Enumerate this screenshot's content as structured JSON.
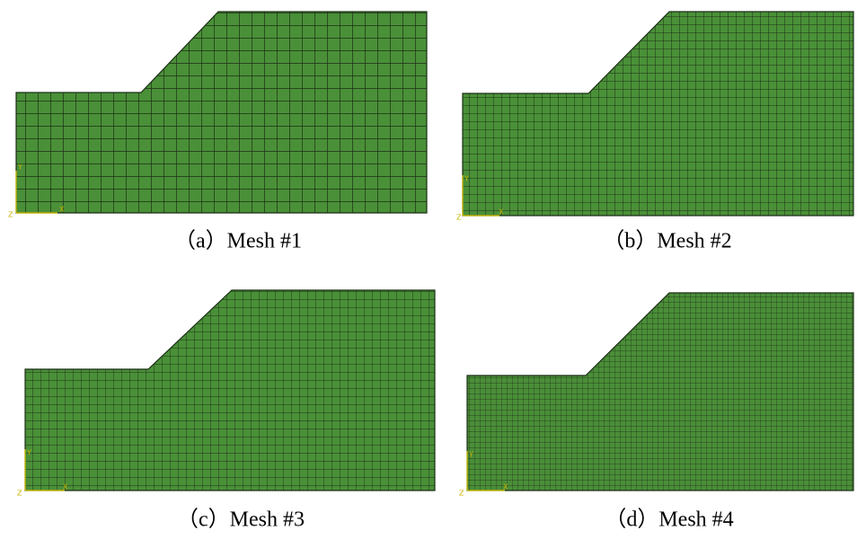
{
  "panels": [
    {
      "caption": "（a）Mesh #1",
      "axes": [
        "Y",
        "X",
        "Z"
      ]
    },
    {
      "caption": "（b）Mesh #2",
      "axes": [
        "Y",
        "X",
        "Z"
      ]
    },
    {
      "caption": "（c）Mesh #3",
      "axes": [
        "Y",
        "X",
        "Z"
      ]
    },
    {
      "caption": "（d）Mesh #4",
      "axes": [
        "Y",
        "X",
        "Z"
      ]
    }
  ]
}
